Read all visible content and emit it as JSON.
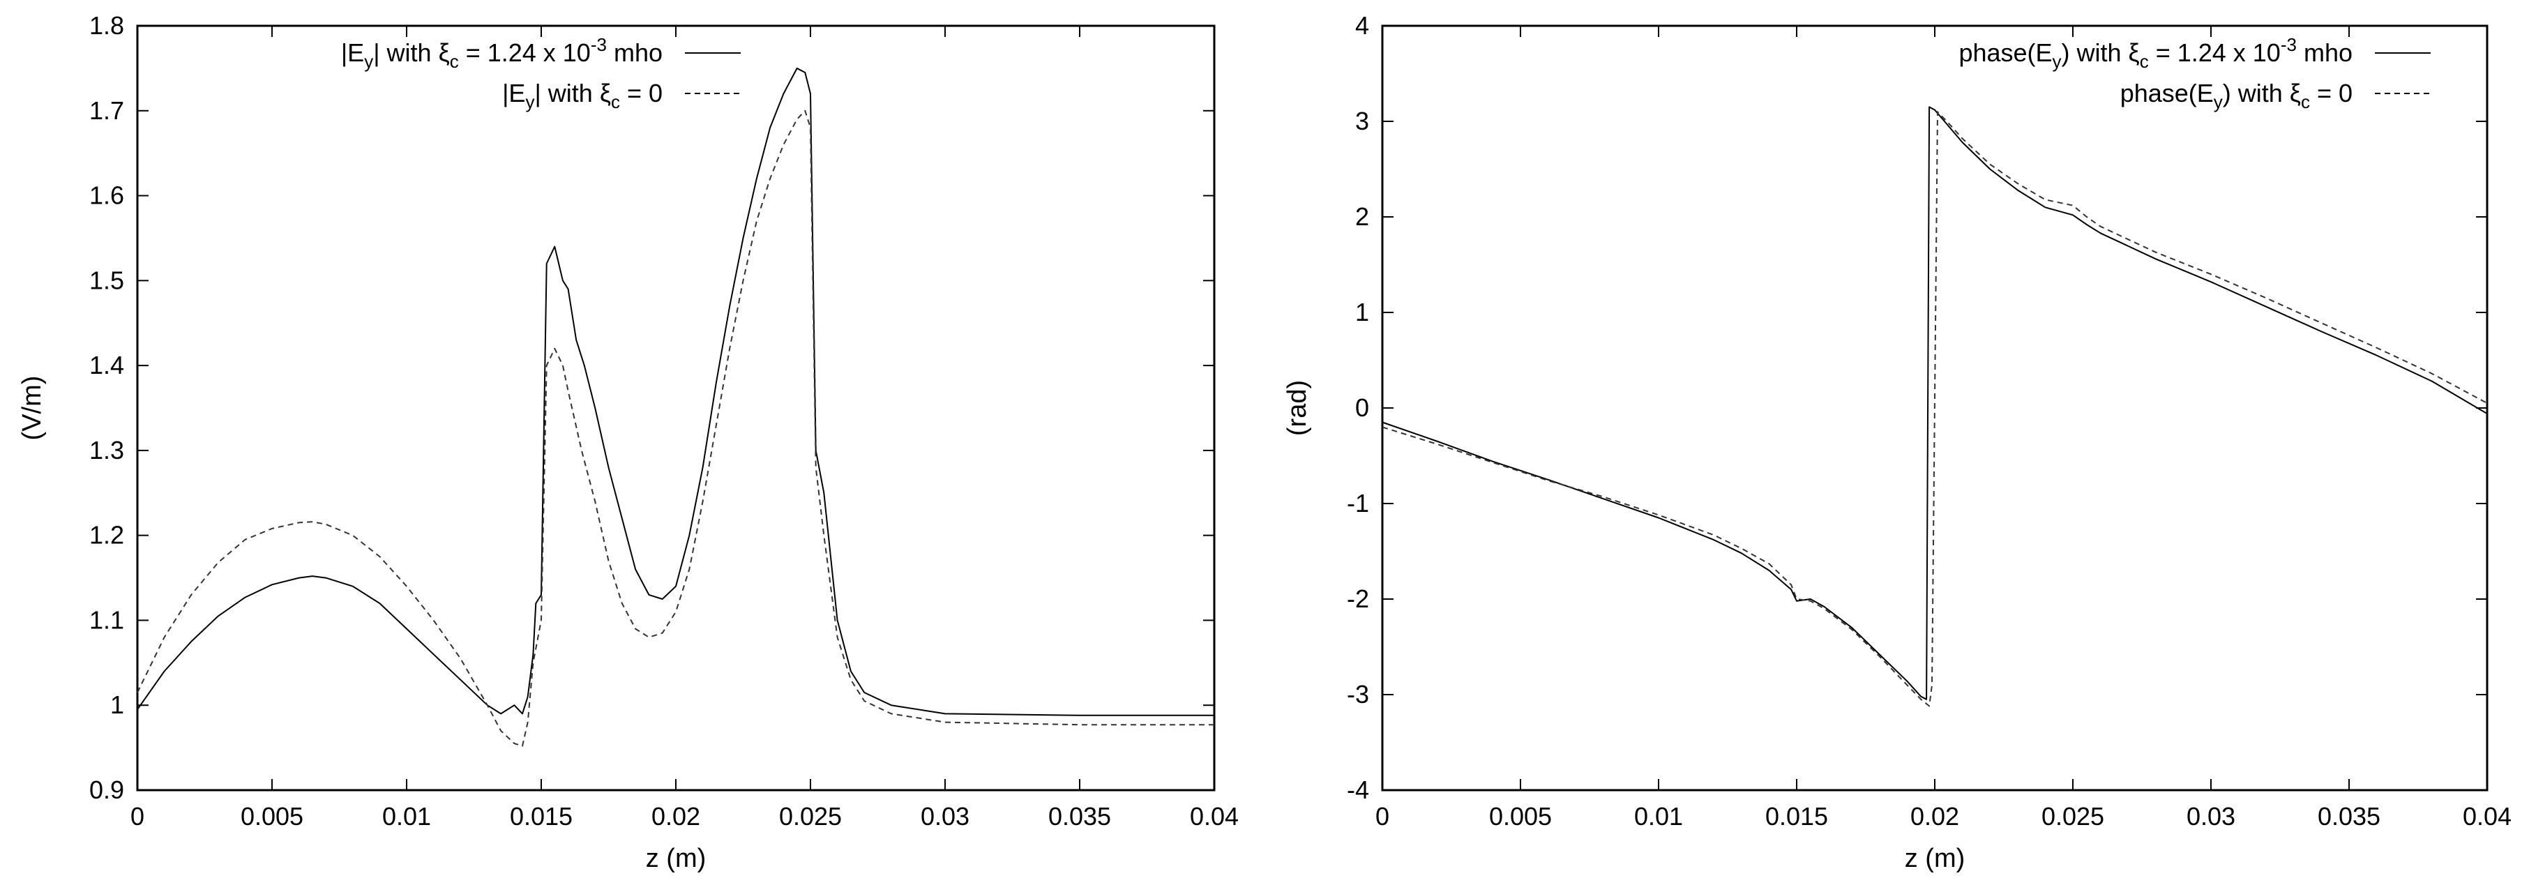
{
  "chart_data": [
    {
      "type": "line",
      "xlabel": "z (m)",
      "ylabel": "(V/m)",
      "xlim": [
        0,
        0.04
      ],
      "ylim": [
        0.9,
        1.8
      ],
      "xticks": [
        "0",
        "0.005",
        "0.01",
        "0.015",
        "0.02",
        "0.025",
        "0.03",
        "0.035",
        "0.04"
      ],
      "yticks": [
        "0.9",
        "1",
        "1.1",
        "1.2",
        "1.3",
        "1.4",
        "1.5",
        "1.6",
        "1.7",
        "1.8"
      ],
      "legend_position": "top-right",
      "grid": false,
      "series": [
        {
          "legend": {
            "pre": "|E",
            "sub": "y",
            "mid": "| with ξ",
            "sub2": "c",
            "post": " = 1.24 x 10",
            "sup": "-3",
            "tail": " mho"
          },
          "style": "solid",
          "points": [
            [
              0,
              0.995
            ],
            [
              0.001,
              1.04
            ],
            [
              0.002,
              1.075
            ],
            [
              0.003,
              1.105
            ],
            [
              0.004,
              1.127
            ],
            [
              0.005,
              1.142
            ],
            [
              0.006,
              1.15
            ],
            [
              0.0065,
              1.152
            ],
            [
              0.007,
              1.15
            ],
            [
              0.008,
              1.14
            ],
            [
              0.009,
              1.12
            ],
            [
              0.01,
              1.09
            ],
            [
              0.011,
              1.06
            ],
            [
              0.012,
              1.03
            ],
            [
              0.013,
              1.0
            ],
            [
              0.0135,
              0.99
            ],
            [
              0.014,
              1.0
            ],
            [
              0.0143,
              0.99
            ],
            [
              0.0145,
              1.01
            ],
            [
              0.0147,
              1.06
            ],
            [
              0.0148,
              1.12
            ],
            [
              0.015,
              1.13
            ],
            [
              0.0152,
              1.52
            ],
            [
              0.0155,
              1.54
            ],
            [
              0.0158,
              1.5
            ],
            [
              0.016,
              1.49
            ],
            [
              0.0163,
              1.43
            ],
            [
              0.0166,
              1.4
            ],
            [
              0.017,
              1.35
            ],
            [
              0.0175,
              1.28
            ],
            [
              0.018,
              1.22
            ],
            [
              0.0185,
              1.16
            ],
            [
              0.019,
              1.13
            ],
            [
              0.0195,
              1.125
            ],
            [
              0.02,
              1.14
            ],
            [
              0.0205,
              1.2
            ],
            [
              0.021,
              1.28
            ],
            [
              0.0215,
              1.38
            ],
            [
              0.022,
              1.47
            ],
            [
              0.0225,
              1.55
            ],
            [
              0.023,
              1.62
            ],
            [
              0.0235,
              1.68
            ],
            [
              0.024,
              1.72
            ],
            [
              0.0245,
              1.75
            ],
            [
              0.0248,
              1.745
            ],
            [
              0.025,
              1.72
            ],
            [
              0.0252,
              1.3
            ],
            [
              0.0255,
              1.25
            ],
            [
              0.026,
              1.1
            ],
            [
              0.0265,
              1.04
            ],
            [
              0.027,
              1.015
            ],
            [
              0.028,
              1.0
            ],
            [
              0.03,
              0.99
            ],
            [
              0.035,
              0.988
            ],
            [
              0.04,
              0.988
            ]
          ]
        },
        {
          "legend": {
            "pre": "|E",
            "sub": "y",
            "mid": "| with ξ",
            "sub2": "c",
            "post": " = 0",
            "sup": "",
            "tail": ""
          },
          "style": "dashed",
          "points": [
            [
              0,
              1.015
            ],
            [
              0.001,
              1.08
            ],
            [
              0.002,
              1.13
            ],
            [
              0.003,
              1.168
            ],
            [
              0.004,
              1.195
            ],
            [
              0.005,
              1.208
            ],
            [
              0.006,
              1.215
            ],
            [
              0.0065,
              1.216
            ],
            [
              0.007,
              1.213
            ],
            [
              0.008,
              1.2
            ],
            [
              0.009,
              1.175
            ],
            [
              0.01,
              1.14
            ],
            [
              0.011,
              1.1
            ],
            [
              0.012,
              1.055
            ],
            [
              0.013,
              1.0
            ],
            [
              0.0135,
              0.97
            ],
            [
              0.014,
              0.955
            ],
            [
              0.0143,
              0.952
            ],
            [
              0.0145,
              0.98
            ],
            [
              0.0147,
              1.05
            ],
            [
              0.015,
              1.1
            ],
            [
              0.0152,
              1.4
            ],
            [
              0.0155,
              1.42
            ],
            [
              0.0158,
              1.4
            ],
            [
              0.016,
              1.37
            ],
            [
              0.0165,
              1.3
            ],
            [
              0.017,
              1.24
            ],
            [
              0.0175,
              1.17
            ],
            [
              0.018,
              1.12
            ],
            [
              0.0185,
              1.09
            ],
            [
              0.019,
              1.08
            ],
            [
              0.0195,
              1.085
            ],
            [
              0.02,
              1.11
            ],
            [
              0.0205,
              1.16
            ],
            [
              0.021,
              1.24
            ],
            [
              0.0215,
              1.33
            ],
            [
              0.022,
              1.42
            ],
            [
              0.0225,
              1.5
            ],
            [
              0.023,
              1.57
            ],
            [
              0.0235,
              1.62
            ],
            [
              0.024,
              1.66
            ],
            [
              0.0245,
              1.69
            ],
            [
              0.0248,
              1.7
            ],
            [
              0.025,
              1.68
            ],
            [
              0.0252,
              1.28
            ],
            [
              0.0255,
              1.2
            ],
            [
              0.026,
              1.08
            ],
            [
              0.0265,
              1.03
            ],
            [
              0.027,
              1.005
            ],
            [
              0.028,
              0.99
            ],
            [
              0.03,
              0.98
            ],
            [
              0.035,
              0.977
            ],
            [
              0.04,
              0.977
            ]
          ]
        }
      ]
    },
    {
      "type": "line",
      "xlabel": "z (m)",
      "ylabel": "(rad)",
      "xlim": [
        0,
        0.04
      ],
      "ylim": [
        -4,
        4
      ],
      "xticks": [
        "0",
        "0.005",
        "0.01",
        "0.015",
        "0.02",
        "0.025",
        "0.03",
        "0.035",
        "0.04"
      ],
      "yticks": [
        "-4",
        "-3",
        "-2",
        "-1",
        "0",
        "1",
        "2",
        "3",
        "4"
      ],
      "legend_position": "top-right",
      "grid": false,
      "series": [
        {
          "legend": {
            "pre": "phase(E",
            "sub": "y",
            "mid": ") with ξ",
            "sub2": "c",
            "post": " = 1.24 x 10",
            "sup": "-3",
            "tail": " mho"
          },
          "style": "solid",
          "points": [
            [
              0,
              -0.15
            ],
            [
              0.002,
              -0.35
            ],
            [
              0.004,
              -0.56
            ],
            [
              0.006,
              -0.75
            ],
            [
              0.008,
              -0.95
            ],
            [
              0.01,
              -1.15
            ],
            [
              0.012,
              -1.38
            ],
            [
              0.013,
              -1.52
            ],
            [
              0.014,
              -1.7
            ],
            [
              0.0148,
              -1.9
            ],
            [
              0.015,
              -2.02
            ],
            [
              0.0155,
              -2.0
            ],
            [
              0.016,
              -2.08
            ],
            [
              0.017,
              -2.3
            ],
            [
              0.018,
              -2.58
            ],
            [
              0.019,
              -2.86
            ],
            [
              0.0195,
              -3.02
            ],
            [
              0.0197,
              -3.05
            ],
            [
              0.0198,
              3.15
            ],
            [
              0.02,
              3.12
            ],
            [
              0.0205,
              2.95
            ],
            [
              0.021,
              2.78
            ],
            [
              0.022,
              2.5
            ],
            [
              0.023,
              2.28
            ],
            [
              0.024,
              2.1
            ],
            [
              0.025,
              2.02
            ],
            [
              0.0255,
              1.92
            ],
            [
              0.026,
              1.83
            ],
            [
              0.028,
              1.56
            ],
            [
              0.03,
              1.32
            ],
            [
              0.032,
              1.06
            ],
            [
              0.034,
              0.8
            ],
            [
              0.036,
              0.55
            ],
            [
              0.038,
              0.28
            ],
            [
              0.04,
              -0.06
            ]
          ]
        },
        {
          "legend": {
            "pre": "phase(E",
            "sub": "y",
            "mid": ") with ξ",
            "sub2": "c",
            "post": " = 0",
            "sup": "",
            "tail": ""
          },
          "style": "dashed",
          "points": [
            [
              0,
              -0.2
            ],
            [
              0.002,
              -0.38
            ],
            [
              0.004,
              -0.57
            ],
            [
              0.006,
              -0.76
            ],
            [
              0.008,
              -0.93
            ],
            [
              0.01,
              -1.12
            ],
            [
              0.012,
              -1.33
            ],
            [
              0.013,
              -1.47
            ],
            [
              0.014,
              -1.63
            ],
            [
              0.0148,
              -1.85
            ],
            [
              0.015,
              -2.0
            ],
            [
              0.0155,
              -2.02
            ],
            [
              0.016,
              -2.1
            ],
            [
              0.017,
              -2.32
            ],
            [
              0.018,
              -2.6
            ],
            [
              0.019,
              -2.9
            ],
            [
              0.0195,
              -3.05
            ],
            [
              0.0198,
              -3.12
            ],
            [
              0.0199,
              -2.9
            ],
            [
              0.0201,
              3.1
            ],
            [
              0.0205,
              2.98
            ],
            [
              0.021,
              2.82
            ],
            [
              0.022,
              2.55
            ],
            [
              0.023,
              2.35
            ],
            [
              0.024,
              2.18
            ],
            [
              0.025,
              2.12
            ],
            [
              0.0255,
              2.0
            ],
            [
              0.026,
              1.9
            ],
            [
              0.028,
              1.63
            ],
            [
              0.03,
              1.4
            ],
            [
              0.032,
              1.15
            ],
            [
              0.034,
              0.89
            ],
            [
              0.036,
              0.63
            ],
            [
              0.038,
              0.36
            ],
            [
              0.04,
              0.05
            ]
          ]
        }
      ]
    }
  ]
}
